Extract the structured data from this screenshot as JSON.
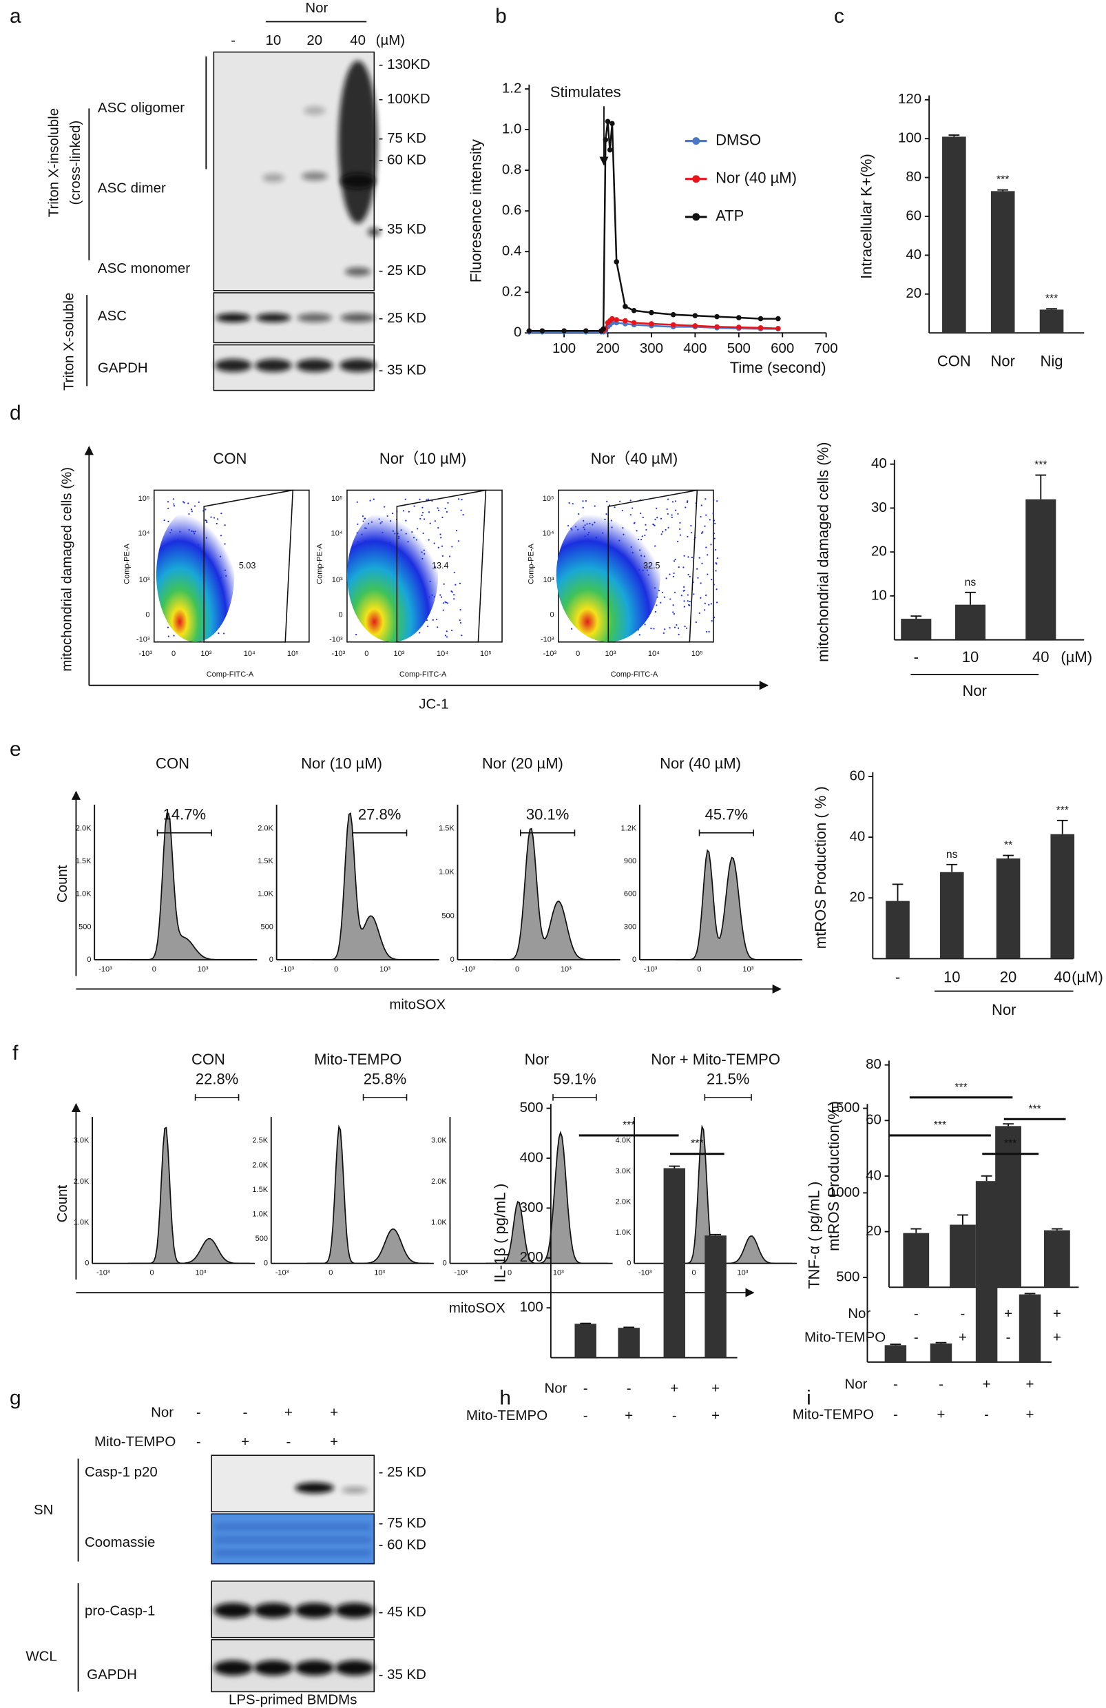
{
  "panel_letters": [
    "a",
    "b",
    "c",
    "d",
    "e",
    "f",
    "g",
    "h",
    "i"
  ],
  "blot_a": {
    "group": "Nor",
    "lanes": [
      "-",
      "10",
      "20",
      "40"
    ],
    "unit": "(µM)",
    "sections": [
      "Triton X-insoluble",
      "(cross-linked)",
      "Triton X-soluble"
    ],
    "bands": [
      "ASC oligomer",
      "ASC dimer",
      "ASC monomer",
      "ASC",
      "GAPDH"
    ],
    "markers": [
      "- 130KD",
      "- 100KD",
      "- 75 KD",
      "- 60 KD",
      "- 35 KD",
      "- 25 KD",
      "- 25 KD",
      "- 35 KD"
    ]
  },
  "flow_d": {
    "titles": [
      "CON",
      "Nor（10 µM)",
      "Nor（40 µM)"
    ],
    "gates": [
      "5.03",
      "13.4",
      "32.5"
    ],
    "ylabel": "mitochondrial damaged cells (%)",
    "xlabel": "JC-1",
    "x_channel": "Comp-FITC-A",
    "y_channel": "Comp-PE-A",
    "xticks": [
      "-10³",
      "0",
      "10³",
      "10⁴",
      "10⁵"
    ],
    "yticks": [
      "10⁵",
      "10⁴",
      "10³",
      "0",
      "-10³"
    ]
  },
  "flow_e": {
    "titles": [
      "CON",
      "Nor (10 µM)",
      "Nor (20 µM)",
      "Nor (40 µM)"
    ],
    "gates": [
      "14.7%",
      "27.8%",
      "30.1%",
      "45.7%"
    ],
    "ylabel": "Count",
    "xlabel": "mitoSOX",
    "xticks": [
      "-10³",
      "0",
      "10³"
    ],
    "yticks": [
      [
        "2.0K",
        "1.5K",
        "1.0K",
        "500",
        "0"
      ],
      [
        "2.0K",
        "1.5K",
        "1.0K",
        "500",
        "0"
      ],
      [
        "1.5K",
        "1.0K",
        "500",
        "0"
      ],
      [
        "1.2K",
        "900",
        "600",
        "300",
        "0"
      ]
    ]
  },
  "flow_f": {
    "titles": [
      "CON",
      "Mito-TEMPO",
      "Nor",
      "Nor + Mito-TEMPO"
    ],
    "gates": [
      "22.8%",
      "25.8%",
      "59.1%",
      "21.5%"
    ],
    "ylabel": "Count",
    "xlabel": "mitoSOX",
    "xticks": [
      "-10³",
      "0",
      "10³"
    ],
    "yticks": [
      [
        "3.0K",
        "2.0K",
        "1.0K",
        "0"
      ],
      [
        "2.5K",
        "2.0K",
        "1.5K",
        "1.0K",
        "500",
        "0"
      ],
      [
        "3.0K",
        "2.0K",
        "1.0K",
        "0"
      ],
      [
        "4.0K",
        "3.0K",
        "2.0K",
        "1.0K",
        "0"
      ]
    ]
  },
  "blot_g": {
    "rows": [
      {
        "name": "Nor",
        "values": [
          "-",
          "-",
          "+",
          "+"
        ]
      },
      {
        "name": "Mito-TEMPO",
        "values": [
          "-",
          "+",
          "-",
          "+"
        ]
      }
    ],
    "groups": [
      "SN",
      "WCL"
    ],
    "bands": [
      "Casp-1 p20",
      "Coomassie",
      "pro-Casp-1",
      "GAPDH"
    ],
    "markers": [
      "- 25 KD",
      "- 75 KD",
      "- 60 KD",
      "- 45 KD",
      "- 35 KD"
    ],
    "caption": "LPS-primed BMDMs"
  },
  "chart_data": [
    {
      "type": "line",
      "ylabel": "Fluoresence intensity",
      "xlabel": "Time (second)",
      "annotation": "Stimulates",
      "x": [
        20,
        50,
        100,
        150,
        185,
        190,
        195,
        200,
        205,
        210,
        220,
        240,
        260,
        300,
        350,
        400,
        450,
        500,
        550,
        590
      ],
      "series": [
        {
          "name": "DMSO",
          "color": "#4a78c8",
          "values": [
            0.005,
            0.005,
            0.005,
            0.005,
            0.005,
            0.005,
            0.01,
            0.03,
            0.04,
            0.05,
            0.05,
            0.045,
            0.04,
            0.035,
            0.03,
            0.03,
            0.025,
            0.022,
            0.02,
            0.02
          ]
        },
        {
          "name": "Nor (40 µM)",
          "color": "#e8141c",
          "values": [
            0.01,
            0.01,
            0.01,
            0.01,
            0.01,
            0.01,
            0.02,
            0.05,
            0.06,
            0.07,
            0.065,
            0.06,
            0.05,
            0.045,
            0.04,
            0.035,
            0.03,
            0.028,
            0.025,
            0.022
          ]
        },
        {
          "name": "ATP",
          "color": "#111111",
          "values": [
            0.01,
            0.01,
            0.01,
            0.01,
            0.01,
            0.02,
            0.95,
            1.04,
            0.9,
            1.03,
            0.35,
            0.13,
            0.11,
            0.1,
            0.09,
            0.085,
            0.08,
            0.075,
            0.07,
            0.07
          ]
        }
      ],
      "xlim": [
        20,
        700
      ],
      "xticks": [
        100,
        200,
        300,
        400,
        500,
        600,
        700
      ],
      "ylim": [
        0,
        1.2
      ],
      "yticks": [
        0,
        0.2,
        0.4,
        0.6,
        0.8,
        {
          "value": 1,
          "label": "1.0"
        },
        1.2
      ],
      "legend": "upper right"
    },
    {
      "type": "bar",
      "ylabel": "Intracellular K+(%)",
      "categories": [
        "CON",
        "Nor",
        "Nig"
      ],
      "values": [
        101,
        73,
        12
      ],
      "errors": [
        0.8,
        0.6,
        0.4
      ],
      "annotations": [
        null,
        "***",
        "***"
      ],
      "color": "#333333",
      "ylim": [
        0,
        120
      ],
      "yticks": [
        20,
        40,
        60,
        80,
        100,
        120
      ]
    },
    {
      "type": "bar",
      "ylabel": "mitochondrial damaged cells (%)",
      "categories": [
        "-",
        "10",
        "40"
      ],
      "unit": "(µM)",
      "group": "Nor",
      "values": [
        4.8,
        8,
        32
      ],
      "errors": [
        0.6,
        2.8,
        5.5
      ],
      "annotations": [
        null,
        "ns",
        "***"
      ],
      "color": "#333333",
      "ylim": [
        0,
        40
      ],
      "yticks": [
        10,
        20,
        30,
        40
      ]
    },
    {
      "type": "bar",
      "ylabel": "mtROS Production ( % )",
      "categories": [
        "-",
        "10",
        "20",
        "40"
      ],
      "unit": "(µM)",
      "group": "Nor",
      "values": [
        19,
        28.5,
        33,
        41
      ],
      "errors": [
        5.5,
        2.5,
        1,
        4.5
      ],
      "annotations": [
        null,
        "ns",
        "**",
        "***"
      ],
      "color": "#333333",
      "ylim": [
        0,
        60
      ],
      "yticks": [
        20,
        40,
        60
      ]
    },
    {
      "type": "bar",
      "ylabel": "mtROS Production(%)",
      "categories": [
        null,
        null,
        null,
        null
      ],
      "rows": [
        {
          "name": "Nor",
          "values": [
            "-",
            "-",
            "+",
            "+"
          ]
        },
        {
          "name": "Mito-TEMPO",
          "values": [
            "-",
            "+",
            "-",
            "+"
          ]
        }
      ],
      "values": [
        19.5,
        22.5,
        58,
        20.5
      ],
      "errors": [
        1.5,
        3.5,
        0.8,
        0.5
      ],
      "significance": [
        "***",
        "***"
      ],
      "color": "#333333",
      "ylim": [
        0,
        80
      ],
      "yticks": [
        20,
        40,
        60,
        80
      ]
    },
    {
      "type": "bar",
      "ylabel": "IL-1β ( pg/mL )",
      "categories": [
        null,
        null,
        null,
        null
      ],
      "rows": [
        {
          "name": "Nor",
          "values": [
            "-",
            "-",
            "+",
            "+"
          ]
        },
        {
          "name": "Mito-TEMPO",
          "values": [
            "-",
            "+",
            "-",
            "+"
          ]
        }
      ],
      "values": [
        68,
        60,
        380,
        245
      ],
      "errors": [
        1,
        1,
        4,
        2
      ],
      "significance": [
        "***",
        "***"
      ],
      "color": "#333333",
      "ylim": [
        0,
        500
      ],
      "yticks": [
        100,
        200,
        300,
        400,
        500
      ]
    },
    {
      "type": "bar",
      "ylabel": "TNF-α ( pg/mL )",
      "categories": [
        null,
        null,
        null,
        null
      ],
      "rows": [
        {
          "name": "Nor",
          "values": [
            "-",
            "-",
            "+",
            "+"
          ]
        },
        {
          "name": "Mito-TEMPO",
          "values": [
            "-",
            "+",
            "-",
            "+"
          ]
        }
      ],
      "values": [
        100,
        110,
        1070,
        400
      ],
      "errors": [
        5,
        5,
        30,
        5
      ],
      "significance": [
        "***",
        "***"
      ],
      "color": "#333333",
      "ylim": [
        0,
        1500
      ],
      "yticks": [
        500,
        1000,
        1500
      ]
    }
  ]
}
